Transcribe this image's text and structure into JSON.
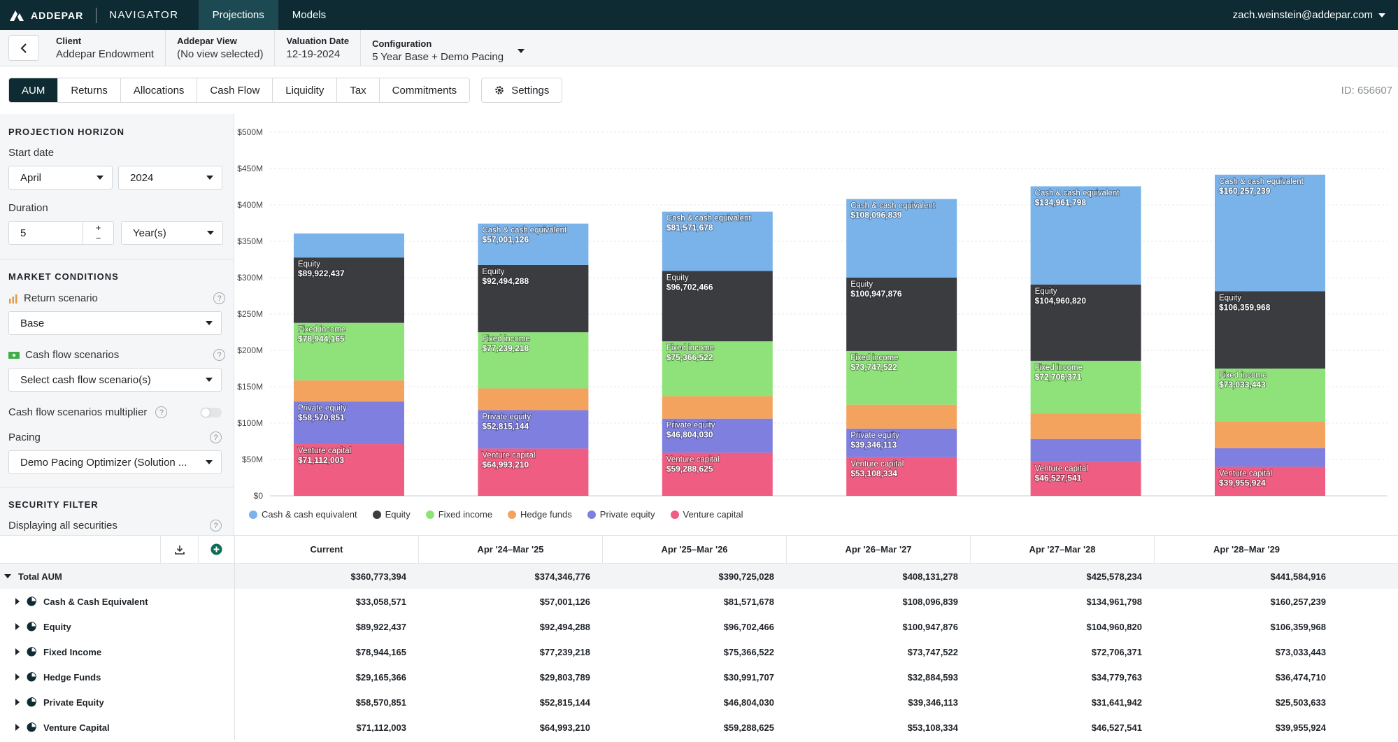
{
  "topbar": {
    "brand": "ADDEPAR",
    "product": "NAVIGATOR",
    "tabs": [
      "Projections",
      "Models"
    ],
    "user": "zach.weinstein@addepar.com"
  },
  "context": {
    "client_label": "Client",
    "client_value": "Addepar Endowment",
    "view_label": "Addepar View",
    "view_value": "(No view selected)",
    "date_label": "Valuation Date",
    "date_value": "12-19-2024",
    "config_label": "Configuration",
    "config_value": "5 Year Base + Demo Pacing"
  },
  "tabs": [
    "AUM",
    "Returns",
    "Allocations",
    "Cash Flow",
    "Liquidity",
    "Tax",
    "Commitments"
  ],
  "settings_label": "Settings",
  "id_label": "ID: 656607",
  "sidebar": {
    "horizon_title": "PROJECTION HORIZON",
    "start_date_label": "Start date",
    "start_month": "April",
    "start_year": "2024",
    "duration_label": "Duration",
    "duration_value": "5",
    "duration_unit": "Year(s)",
    "market_title": "MARKET CONDITIONS",
    "return_scenario_label": "Return scenario",
    "return_scenario_value": "Base",
    "cash_flow_label": "Cash flow scenarios",
    "cash_flow_placeholder": "Select cash flow scenario(s)",
    "multiplier_label": "Cash flow scenarios multiplier",
    "pacing_label": "Pacing",
    "pacing_value": "Demo Pacing Optimizer (Solution ...",
    "security_title": "SECURITY FILTER",
    "security_status": "Displaying all securities"
  },
  "colors": {
    "cash": "#7ab3ea",
    "equity": "#3b3c40",
    "fixed": "#8fe27a",
    "hedge": "#f4a35f",
    "pe": "#7f7fe0",
    "vc": "#ef5d82"
  },
  "chart_data": {
    "type": "bar",
    "stacked": true,
    "categories": [
      "Current",
      "Apr '24–Mar '25",
      "Apr '25–Mar '26",
      "Apr '26–Mar '27",
      "Apr '27–Mar '28",
      "Apr '28–Mar '29"
    ],
    "ylim": [
      0,
      500000000
    ],
    "yticks": [
      "$0",
      "$50M",
      "$100M",
      "$150M",
      "$200M",
      "$250M",
      "$300M",
      "$350M",
      "$400M",
      "$450M",
      "$500M"
    ],
    "grid": true,
    "legend_position": "bottom-left",
    "series": [
      {
        "name": "Venture capital",
        "key": "vc",
        "values": [
          71112003,
          64993210,
          59288625,
          53108334,
          46527541,
          39955924
        ],
        "labels": [
          "$71,112,003",
          "$64,993,210",
          "$59,288,625",
          "$53,108,334",
          "$46,527,541",
          "$39,955,924"
        ]
      },
      {
        "name": "Private equity",
        "key": "pe",
        "values": [
          58570851,
          52815144,
          46804030,
          39346113,
          31641942,
          25503633
        ],
        "labels": [
          "$58,570,851",
          "$52,815,144",
          "$46,804,030",
          "$39,346,113",
          "",
          ""
        ]
      },
      {
        "name": "Hedge funds",
        "key": "hedge",
        "values": [
          29165366,
          29803789,
          30991707,
          32884593,
          34779763,
          36474710
        ],
        "labels": [
          "",
          "",
          "",
          "",
          "",
          ""
        ]
      },
      {
        "name": "Fixed income",
        "key": "fixed",
        "values": [
          78944165,
          77239218,
          75366522,
          73747522,
          72706371,
          73033443
        ],
        "labels": [
          "$78,944,165",
          "$77,239,218",
          "$75,366,522",
          "$73,747,522",
          "$72,706,371",
          "$73,033,443"
        ]
      },
      {
        "name": "Equity",
        "key": "equity",
        "values": [
          89922437,
          92494288,
          96702466,
          100947876,
          104960820,
          106359968
        ],
        "labels": [
          "$89,922,437",
          "$92,494,288",
          "$96,702,466",
          "$100,947,876",
          "$104,960,820",
          "$106,359,968"
        ]
      },
      {
        "name": "Cash & cash equivalent",
        "key": "cash",
        "values": [
          33058571,
          57001126,
          81571678,
          108096839,
          134961798,
          160257239
        ],
        "labels": [
          "",
          "$57,001,126",
          "$81,571,678",
          "$108,096,839",
          "$134,961,798",
          "$160,257,239"
        ]
      }
    ],
    "legend_order": [
      "Cash & cash equivalent",
      "Equity",
      "Fixed income",
      "Hedge funds",
      "Private equity",
      "Venture capital"
    ]
  },
  "table": {
    "columns": [
      "Current",
      "Apr '24–Mar '25",
      "Apr '25–Mar '26",
      "Apr '26–Mar '27",
      "Apr '27–Mar '28",
      "Apr '28–Mar '29"
    ],
    "total": {
      "label": "Total AUM",
      "values": [
        "$360,773,394",
        "$374,346,776",
        "$390,725,028",
        "$408,131,278",
        "$425,578,234",
        "$441,584,916"
      ]
    },
    "rows": [
      {
        "label": "Cash & Cash Equivalent",
        "values": [
          "$33,058,571",
          "$57,001,126",
          "$81,571,678",
          "$108,096,839",
          "$134,961,798",
          "$160,257,239"
        ]
      },
      {
        "label": "Equity",
        "values": [
          "$89,922,437",
          "$92,494,288",
          "$96,702,466",
          "$100,947,876",
          "$104,960,820",
          "$106,359,968"
        ]
      },
      {
        "label": "Fixed Income",
        "values": [
          "$78,944,165",
          "$77,239,218",
          "$75,366,522",
          "$73,747,522",
          "$72,706,371",
          "$73,033,443"
        ]
      },
      {
        "label": "Hedge Funds",
        "values": [
          "$29,165,366",
          "$29,803,789",
          "$30,991,707",
          "$32,884,593",
          "$34,779,763",
          "$36,474,710"
        ]
      },
      {
        "label": "Private Equity",
        "values": [
          "$58,570,851",
          "$52,815,144",
          "$46,804,030",
          "$39,346,113",
          "$31,641,942",
          "$25,503,633"
        ]
      },
      {
        "label": "Venture Capital",
        "values": [
          "$71,112,003",
          "$64,993,210",
          "$59,288,625",
          "$53,108,334",
          "$46,527,541",
          "$39,955,924"
        ]
      }
    ]
  }
}
